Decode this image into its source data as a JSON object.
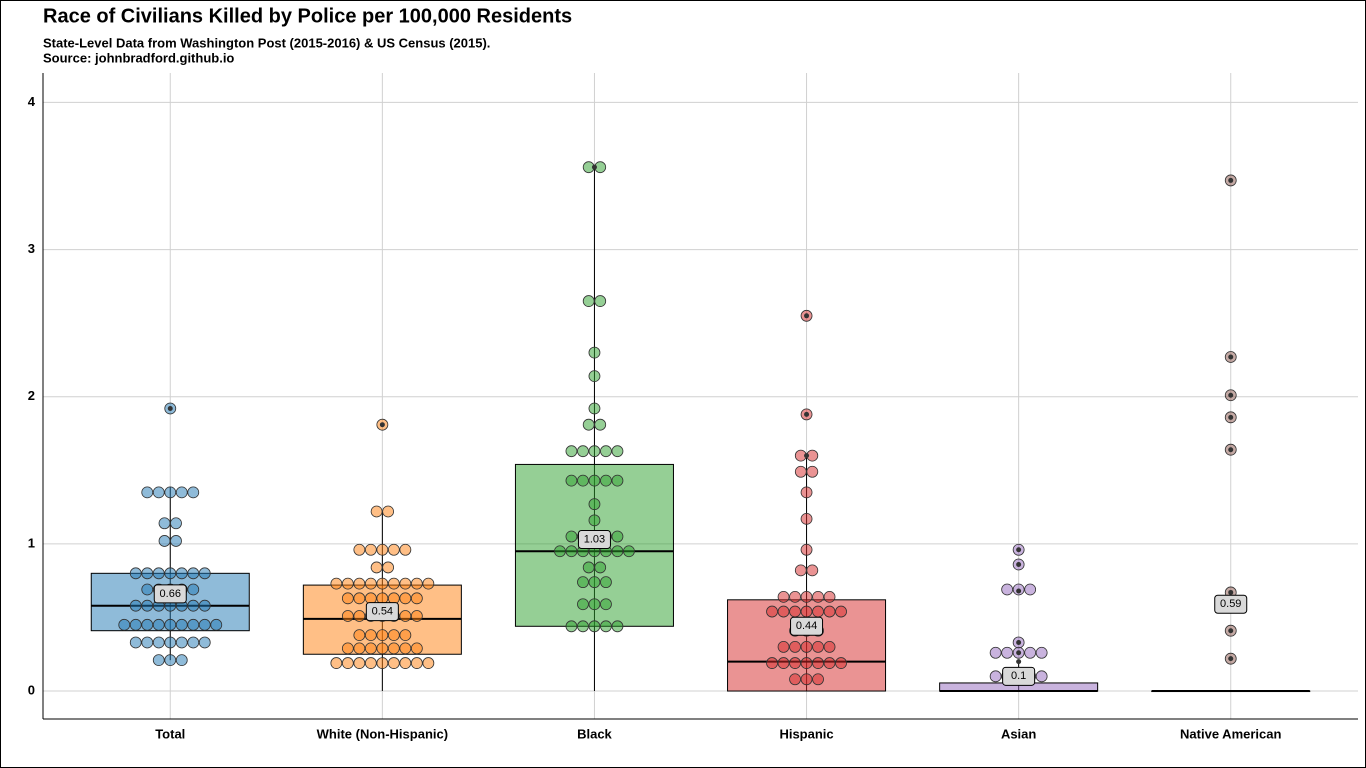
{
  "chart_data": {
    "type": "box",
    "title": "Race of Civilians Killed by Police per 100,000 Residents",
    "subtitle": "State-Level Data from  Washington Post (2015-2016) & US Census (2015).",
    "source": "Source: johnbradford.github.io",
    "ylim": [
      -0.19,
      4.2
    ],
    "yticks": [
      0,
      1,
      2,
      3,
      4
    ],
    "grid": true,
    "groups": [
      {
        "name": "Total",
        "color": "#1f77b4",
        "q1": 0.41,
        "median": 0.58,
        "q3": 0.8,
        "whisker_low": 0.21,
        "whisker_high": 1.39,
        "mean": 0.66,
        "outliers": [
          1.92
        ],
        "points": [
          1.92,
          1.35,
          1.35,
          1.35,
          1.35,
          1.35,
          1.14,
          1.14,
          1.02,
          1.02,
          0.8,
          0.8,
          0.8,
          0.8,
          0.8,
          0.8,
          0.8,
          0.69,
          0.69,
          0.69,
          0.69,
          0.69,
          0.58,
          0.58,
          0.58,
          0.58,
          0.58,
          0.58,
          0.58,
          0.45,
          0.45,
          0.45,
          0.45,
          0.45,
          0.45,
          0.45,
          0.45,
          0.45,
          0.33,
          0.33,
          0.33,
          0.33,
          0.33,
          0.33,
          0.33,
          0.21,
          0.21,
          0.21
        ]
      },
      {
        "name": "White (Non-Hispanic)",
        "color": "#ff7f0e",
        "q1": 0.25,
        "median": 0.49,
        "q3": 0.72,
        "whisker_low": 0,
        "whisker_high": 1.22,
        "mean": 0.54,
        "outliers": [
          1.81
        ],
        "points": [
          1.81,
          1.22,
          1.22,
          0.96,
          0.96,
          0.96,
          0.96,
          0.96,
          0.84,
          0.84,
          0.73,
          0.73,
          0.73,
          0.73,
          0.73,
          0.73,
          0.73,
          0.73,
          0.73,
          0.63,
          0.63,
          0.63,
          0.63,
          0.63,
          0.63,
          0.63,
          0.51,
          0.51,
          0.51,
          0.51,
          0.51,
          0.51,
          0.51,
          0.38,
          0.38,
          0.38,
          0.38,
          0.38,
          0.29,
          0.29,
          0.29,
          0.29,
          0.29,
          0.29,
          0.29,
          0.19,
          0.19,
          0.19,
          0.19,
          0.19,
          0.19,
          0.19,
          0.19,
          0.19
        ]
      },
      {
        "name": "Black",
        "color": "#2ca02c",
        "q1": 0.44,
        "median": 0.95,
        "q3": 1.54,
        "whisker_low": 0,
        "whisker_high": 3.56,
        "mean": 1.03,
        "outliers": [
          3.56
        ],
        "points": [
          3.56,
          3.56,
          2.65,
          2.65,
          2.3,
          2.14,
          1.92,
          1.81,
          1.81,
          1.63,
          1.63,
          1.63,
          1.63,
          1.63,
          1.43,
          1.43,
          1.43,
          1.43,
          1.43,
          1.27,
          1.16,
          1.05,
          1.05,
          1.05,
          1.05,
          1.05,
          0.95,
          0.95,
          0.95,
          0.95,
          0.95,
          0.95,
          0.95,
          0.84,
          0.84,
          0.74,
          0.74,
          0.74,
          0.59,
          0.59,
          0.59,
          0.44,
          0.44,
          0.44,
          0.44,
          0.44
        ]
      },
      {
        "name": "Hispanic",
        "color": "#d62728",
        "q1": 0,
        "median": 0.2,
        "q3": 0.62,
        "whisker_low": 0,
        "whisker_high": 1.6,
        "mean": 0.44,
        "outliers": [
          2.55,
          1.88,
          1.6
        ],
        "points": [
          2.55,
          1.88,
          1.6,
          1.6,
          1.49,
          1.49,
          1.35,
          1.17,
          0.96,
          0.82,
          0.82,
          0.64,
          0.64,
          0.64,
          0.64,
          0.64,
          0.54,
          0.54,
          0.54,
          0.54,
          0.54,
          0.54,
          0.54,
          0.41,
          0.41,
          0.41,
          0.3,
          0.3,
          0.3,
          0.3,
          0.3,
          0.19,
          0.19,
          0.19,
          0.19,
          0.19,
          0.19,
          0.19,
          0.08,
          0.08,
          0.08
        ]
      },
      {
        "name": "Asian",
        "color": "#9467bd",
        "q1": 0,
        "median": 0,
        "q3": 0.055,
        "whisker_low": 0,
        "whisker_high": 0.2,
        "mean": 0.1,
        "outliers": [
          0.96,
          0.86,
          0.68,
          0.33,
          0.26,
          0.2
        ],
        "points": [
          0.96,
          0.86,
          0.69,
          0.69,
          0.69,
          0.33,
          0.26,
          0.26,
          0.26,
          0.26,
          0.26,
          0.1,
          0.1,
          0.1,
          0.1,
          0.1
        ]
      },
      {
        "name": "Native American",
        "color": "#8c564b",
        "q1": 0,
        "median": 0,
        "q3": 0,
        "whisker_low": 0,
        "whisker_high": 0,
        "mean": 0.59,
        "outliers": [
          3.47,
          2.27,
          2.01,
          1.86,
          1.64,
          0.67,
          0.41,
          0.22
        ],
        "points": [
          3.47,
          2.27,
          2.01,
          1.86,
          1.64,
          0.67,
          0.41,
          0.22
        ]
      }
    ]
  }
}
